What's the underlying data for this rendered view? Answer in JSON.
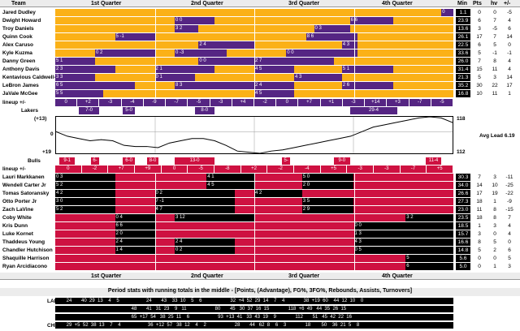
{
  "colors": {
    "lal_main": "#fbb117",
    "lal_alt": "#552583",
    "chi_main": "#ce1141",
    "chi_alt": "#000000"
  },
  "header": {
    "team": "Team",
    "q1": "1st Quarter",
    "q2": "2nd Quarter",
    "q3": "3rd Quarter",
    "q4": "4th Quarter",
    "min": "Min",
    "pts": "Pts",
    "hv": "hv",
    "pm": "+/-"
  },
  "lakers": {
    "players": [
      {
        "name": "Jared Dudley",
        "min": "1.1",
        "pts": "0",
        "hv": "0",
        "pm": "-5"
      },
      {
        "name": "Dwight Howard",
        "min": "23.9",
        "pts": "6",
        "hv": "7",
        "pm": "4"
      },
      {
        "name": "Troy Daniels",
        "min": "13.6",
        "pts": "3",
        "hv": "-5",
        "pm": "6"
      },
      {
        "name": "Quinn Cook",
        "min": "26.1",
        "pts": "17",
        "hv": "7",
        "pm": "14"
      },
      {
        "name": "Alex Caruso",
        "min": "22.5",
        "pts": "6",
        "hv": "5",
        "pm": "0"
      },
      {
        "name": "Kyle Kuzma",
        "min": "33.6",
        "pts": "5",
        "hv": "-1",
        "pm": "-1"
      },
      {
        "name": "Danny Green",
        "min": "26.0",
        "pts": "7",
        "hv": "8",
        "pm": "4"
      },
      {
        "name": "Anthony Davis",
        "min": "31.4",
        "pts": "15",
        "hv": "11",
        "pm": "4"
      },
      {
        "name": "Kentavious Caldwell-Pope",
        "min": "21.3",
        "pts": "5",
        "hv": "3",
        "pm": "14"
      },
      {
        "name": "LeBron James",
        "min": "35.2",
        "pts": "30",
        "hv": "22",
        "pm": "17"
      },
      {
        "name": "JaVale McGee",
        "min": "16.8",
        "pts": "10",
        "hv": "11",
        "pm": "1"
      }
    ],
    "lineup_label": "lineup +/-",
    "team_label": "Lakers",
    "lineup_values": [
      "0",
      "+2",
      "-3",
      "-4",
      "-9",
      "-7",
      "-5",
      "-3",
      "+4",
      "-2",
      "0",
      "+7",
      "+1",
      "-3",
      "+14",
      "+3",
      "-7",
      "-5"
    ],
    "runs": [
      "7-0",
      "5-0",
      "8-0",
      "29-4"
    ]
  },
  "bulls": {
    "team_label": "Bulls",
    "lineup_label": "lineup +/-",
    "runs": [
      "9-1",
      "6-",
      "6-0",
      "8-0",
      "13-0",
      "5-",
      "9-0",
      "11-4"
    ],
    "lineup_values": [
      "0",
      "-2",
      "+7",
      "+9",
      "0",
      "-5",
      "-8",
      "+2",
      "-2",
      "-4",
      "+5",
      "-3",
      "-3",
      "-7",
      "+5"
    ],
    "players": [
      {
        "name": "Lauri Markkanen",
        "min": "30.3",
        "pts": "7",
        "hv": "3",
        "pm": "-11"
      },
      {
        "name": "Wendell Carter Jr",
        "min": "34.0",
        "pts": "14",
        "hv": "10",
        "pm": "-25"
      },
      {
        "name": "Tomas Satoransky",
        "min": "26.6",
        "pts": "17",
        "hv": "19",
        "pm": "-22"
      },
      {
        "name": "Otto Porter Jr",
        "min": "27.3",
        "pts": "18",
        "hv": "1",
        "pm": "-9"
      },
      {
        "name": "Zach LaVine",
        "min": "23.0",
        "pts": "11",
        "hv": "8",
        "pm": "-15"
      },
      {
        "name": "Coby White",
        "min": "23.5",
        "pts": "18",
        "hv": "8",
        "pm": "7"
      },
      {
        "name": "Kris Dunn",
        "min": "18.5",
        "pts": "1",
        "hv": "3",
        "pm": "4"
      },
      {
        "name": "Luke Kornet",
        "min": "15.7",
        "pts": "3",
        "hv": "0",
        "pm": "4"
      },
      {
        "name": "Thaddeus Young",
        "min": "16.6",
        "pts": "8",
        "hv": "5",
        "pm": "0"
      },
      {
        "name": "Chandler Hutchison",
        "min": "14.8",
        "pts": "5",
        "hv": "2",
        "pm": "6"
      },
      {
        "name": "Shaquille Harrison",
        "min": "5.6",
        "pts": "0",
        "hv": "0",
        "pm": "5"
      },
      {
        "name": "Ryan Arcidiacono",
        "min": "5.0",
        "pts": "0",
        "hv": "1",
        "pm": "3"
      }
    ]
  },
  "graph": {
    "top_label": "(+13)",
    "mid_label": "0",
    "bot_label": "+19",
    "right_top": "118",
    "right_bot": "112",
    "avg_lead": "Avg Lead 6.19"
  },
  "footer": {
    "title": "Period stats with running totals in the middle - [Points, (Advantage), FG%, 3FG%, Rebounds, Assists, Turnovers]",
    "lal_label": "LAL",
    "chi_label": "CHI",
    "rows": [
      "       24       40  29  13    4    5                    24       43    33  10    5    6                     32  +4  52  29  14    7    4              38  +19  60    44  12  10    0",
      "                                                       48       41   31  23    9   11                     80       45   30  37  16  15              118  +6  49   44  35  26  15",
      "                                                       65  +17  54   38  25  11    6                     93  +13  41   33  43  19    9              112       51   45  42  22  16",
      "       29  +5  52  38  13    7    4                    36  +12  57   38  12    4    2                     28       44   62  8    6    3              18        50    36  21  5    8"
    ]
  },
  "chart_data": {
    "type": "line",
    "title": "",
    "xlabel": "",
    "ylabel": "",
    "series": [
      {
        "values": [
          0,
          -4,
          -6,
          -8,
          -7,
          -8,
          -12,
          -13,
          -13,
          -14,
          -10,
          -8,
          -6,
          -6,
          -8,
          -12,
          -17,
          -18,
          -19,
          -17,
          -16,
          -14,
          -12,
          -10,
          -8,
          -6,
          -4,
          0,
          4,
          6,
          8,
          10,
          12,
          13,
          12,
          8
        ]
      }
    ],
    "ylim": [
      -19,
      13
    ]
  }
}
